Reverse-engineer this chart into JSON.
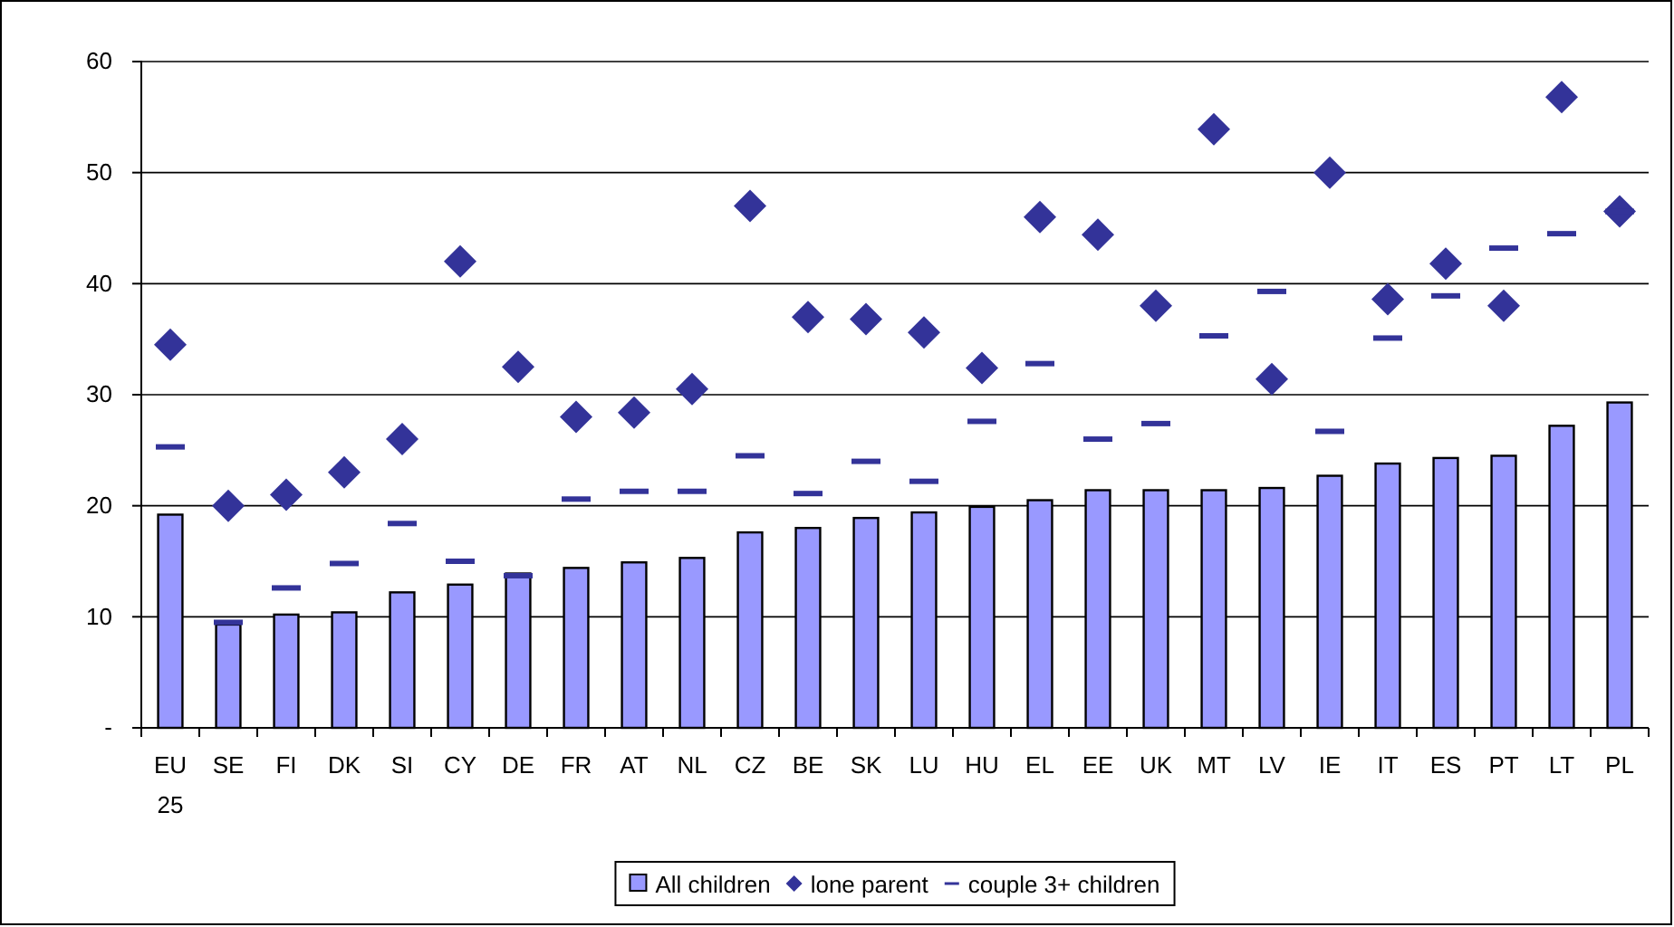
{
  "chart_data": {
    "type": "bar",
    "categories": [
      "EU 25",
      "SE",
      "FI",
      "DK",
      "SI",
      "CY",
      "DE",
      "FR",
      "AT",
      "NL",
      "CZ",
      "BE",
      "SK",
      "LU",
      "HU",
      "EL",
      "EE",
      "UK",
      "MT",
      "LV",
      "IE",
      "IT",
      "ES",
      "PT",
      "LT",
      "PL"
    ],
    "series": [
      {
        "name": "All children",
        "color": "#9999ff",
        "values": [
          19.2,
          9.3,
          10.2,
          10.4,
          12.2,
          12.9,
          13.9,
          14.4,
          14.9,
          15.3,
          17.6,
          18.0,
          18.9,
          19.4,
          19.9,
          20.5,
          21.4,
          21.4,
          21.4,
          21.6,
          22.7,
          23.8,
          24.3,
          24.5,
          27.2,
          29.3
        ]
      },
      {
        "name": "lone parent",
        "type": "scatter",
        "marker": "diamond",
        "color": "#333399",
        "values": [
          34.5,
          20,
          21,
          23,
          26,
          42,
          32.5,
          28,
          28.4,
          30.5,
          47,
          37,
          36.8,
          35.6,
          32.4,
          46,
          44.4,
          38,
          53.9,
          31.4,
          50,
          38.6,
          41.8,
          38,
          56.8,
          46.5
        ]
      },
      {
        "name": "couple 3+ children",
        "type": "scatter",
        "color": "#333399",
        "values": [
          25.3,
          9.5,
          12.6,
          14.8,
          18.4,
          15,
          13.7,
          20.6,
          21.3,
          21.3,
          24.5,
          21.1,
          24,
          22.2,
          27.6,
          32.8,
          26,
          27.4,
          35.3,
          39.3,
          26.7,
          35.1,
          38.9,
          43.2,
          44.5,
          46.5
        ]
      }
    ],
    "ylim": [
      0,
      60
    ],
    "yticks": [
      {
        "value": 0,
        "label": "-"
      },
      10,
      20,
      30,
      40,
      50,
      60
    ],
    "grid": "y",
    "legend": "bottom"
  }
}
